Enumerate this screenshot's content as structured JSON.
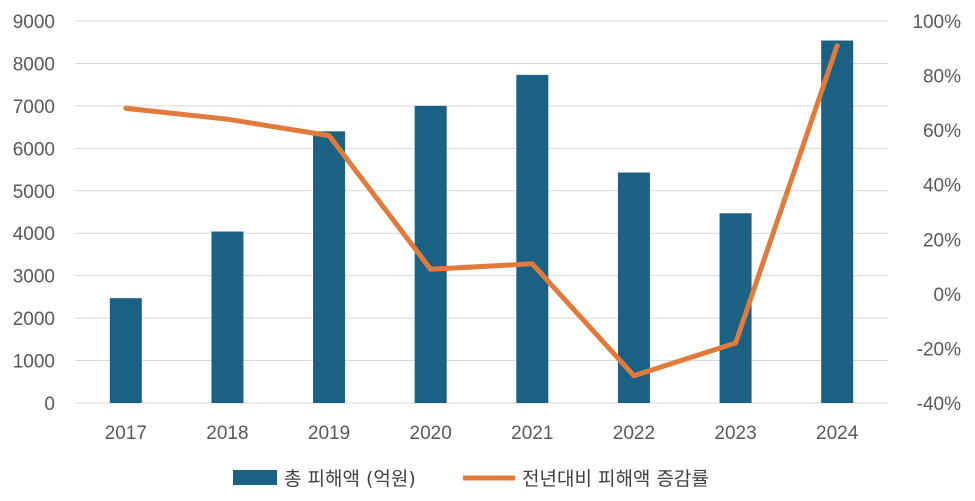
{
  "chart_data": {
    "type": "bar",
    "categories": [
      "2017",
      "2018",
      "2019",
      "2020",
      "2021",
      "2022",
      "2023",
      "2024"
    ],
    "series": [
      {
        "name": "총 피해액 (억원)",
        "type": "bar",
        "axis": "left",
        "color": "#1a6183",
        "values": [
          2470,
          4040,
          6400,
          7000,
          7730,
          5430,
          4470,
          8540
        ]
      },
      {
        "name": "전년대비 피해액 증감률",
        "type": "line",
        "axis": "right",
        "unit": "%",
        "color": "#e07b3c",
        "values": [
          68,
          64,
          58,
          9,
          11,
          -30,
          -18,
          91
        ]
      }
    ],
    "left_axis": {
      "min": 0,
      "max": 9000,
      "step": 1000,
      "tick_labels": [
        "0",
        "1000",
        "2000",
        "3000",
        "4000",
        "5000",
        "6000",
        "7000",
        "8000",
        "9000"
      ]
    },
    "right_axis": {
      "min": -40,
      "max": 100,
      "step": 20,
      "tick_labels": [
        "-40%",
        "-20%",
        "0%",
        "20%",
        "40%",
        "60%",
        "80%",
        "100%"
      ]
    },
    "grid": true,
    "legend_position": "bottom"
  }
}
